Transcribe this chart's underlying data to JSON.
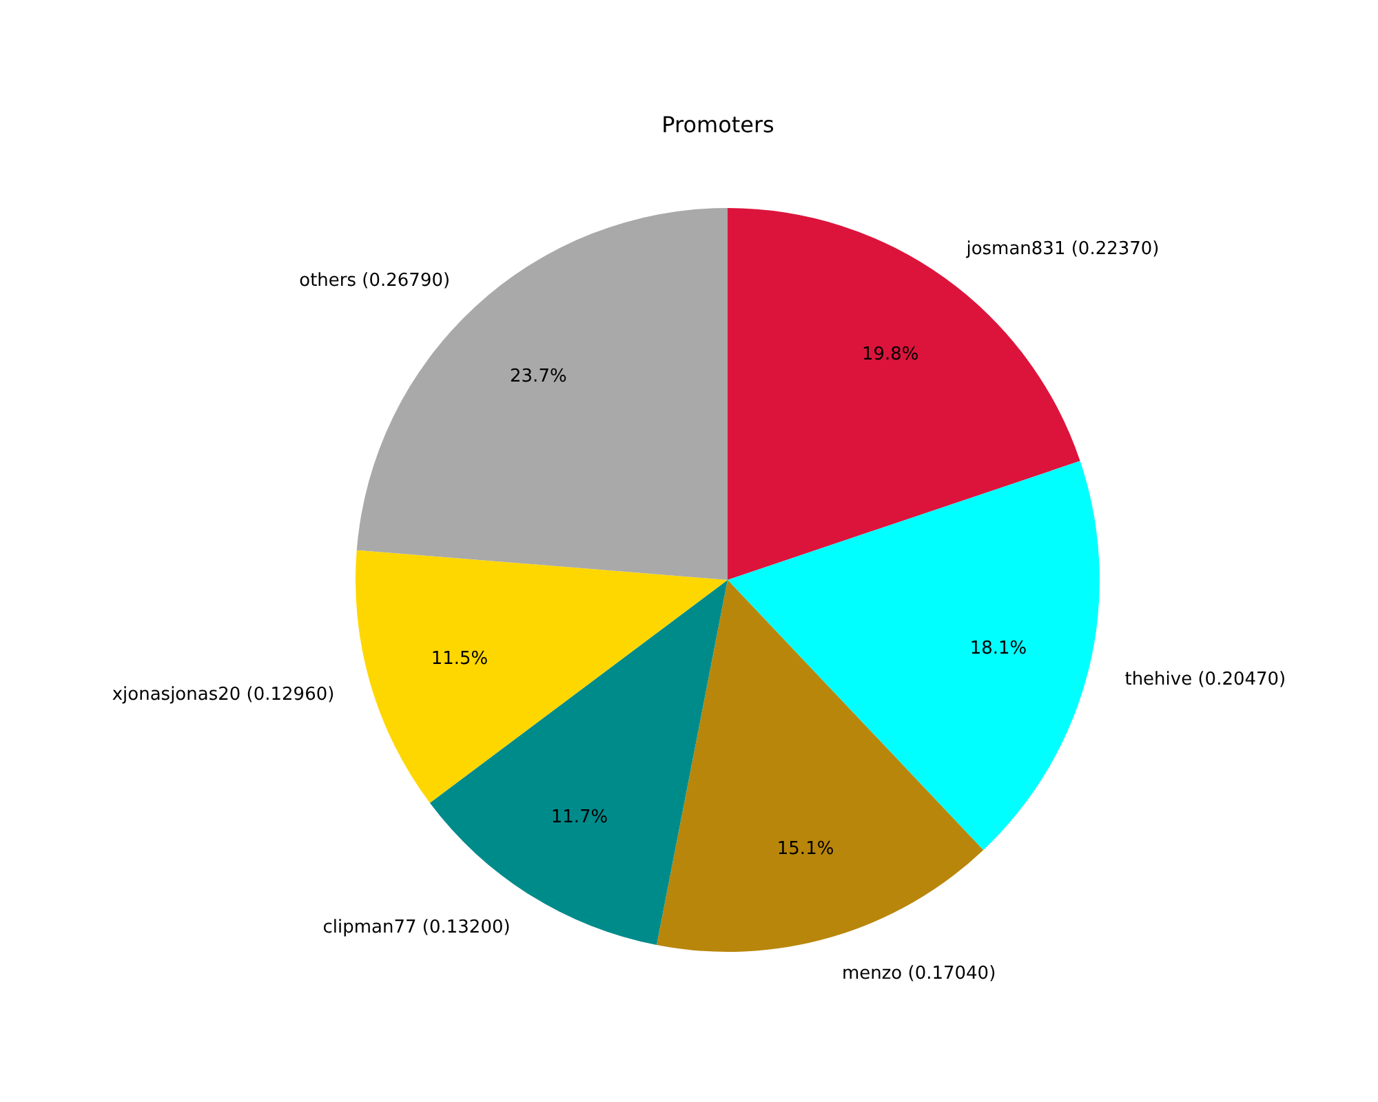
{
  "chart_data": {
    "type": "pie",
    "title": "Promoters",
    "categories": [
      "josman831 (0.22370)",
      "thehive (0.20470)",
      "menzo (0.17040)",
      "clipman77 (0.13200)",
      "xjonasjonas20 (0.12960)",
      "others (0.26790)"
    ],
    "values": [
      19.8,
      18.1,
      15.1,
      11.7,
      11.5,
      23.7
    ],
    "colors": [
      "#dc143c",
      "#00ffff",
      "#b8860b",
      "#008b8b",
      "#ffd700",
      "#a9a9a9"
    ],
    "value_labels": [
      "19.8%",
      "18.1%",
      "15.1%",
      "11.7%",
      "11.5%",
      "23.7%"
    ]
  }
}
